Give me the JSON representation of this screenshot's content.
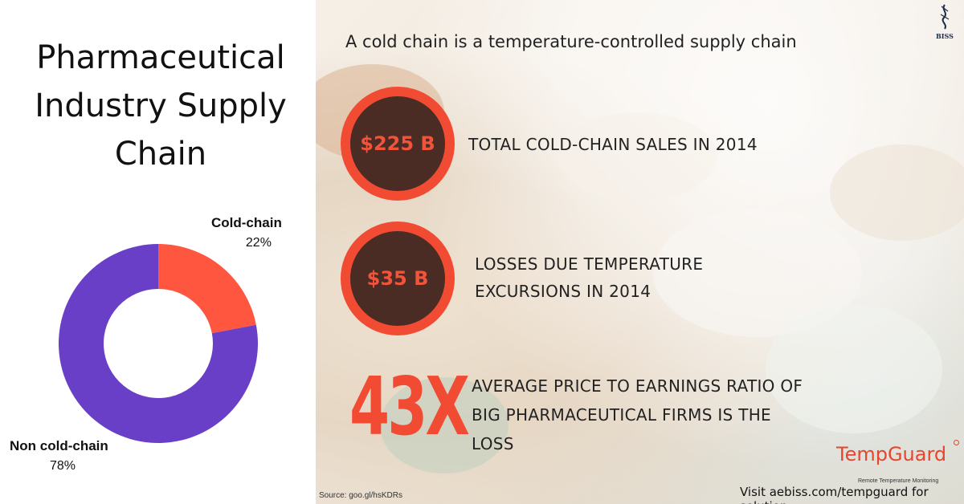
{
  "title": "Pharmaceutical Industry Supply Chain",
  "subtitle": "A cold chain is a temperature-controlled supply chain",
  "stats": [
    {
      "value": "$225 B",
      "text": "TOTAL COLD-CHAIN SALES IN 2014"
    },
    {
      "value": "$35 B",
      "text": "LOSSES DUE TEMPERATURE EXCURSIONS IN 2014"
    },
    {
      "value": "43X",
      "text": "AVERAGE PRICE TO EARNINGS RATIO OF BIG PHARMACEUTICAL FIRMS IS THE LOSS"
    }
  ],
  "source": "Source: goo.gl/hsKDRs",
  "brand": {
    "name": "TempGuard",
    "tagline": "Remote Temperature Monitoring",
    "cta": "Visit aebiss.com/tempguard for solution"
  },
  "logo_text": "BISS",
  "colors": {
    "accent": "#f24b33",
    "circle_fill": "#4a2c24",
    "cold_chain": "#ff5640",
    "non_cold_chain": "#6a3fc8"
  },
  "chart_data": {
    "type": "pie",
    "variant": "donut",
    "slices": [
      {
        "label": "Cold-chain",
        "value": 22,
        "value_label": "22%",
        "color": "#ff5640"
      },
      {
        "label": "Non cold-chain",
        "value": 78,
        "value_label": "78%",
        "color": "#6a3fc8"
      }
    ]
  }
}
